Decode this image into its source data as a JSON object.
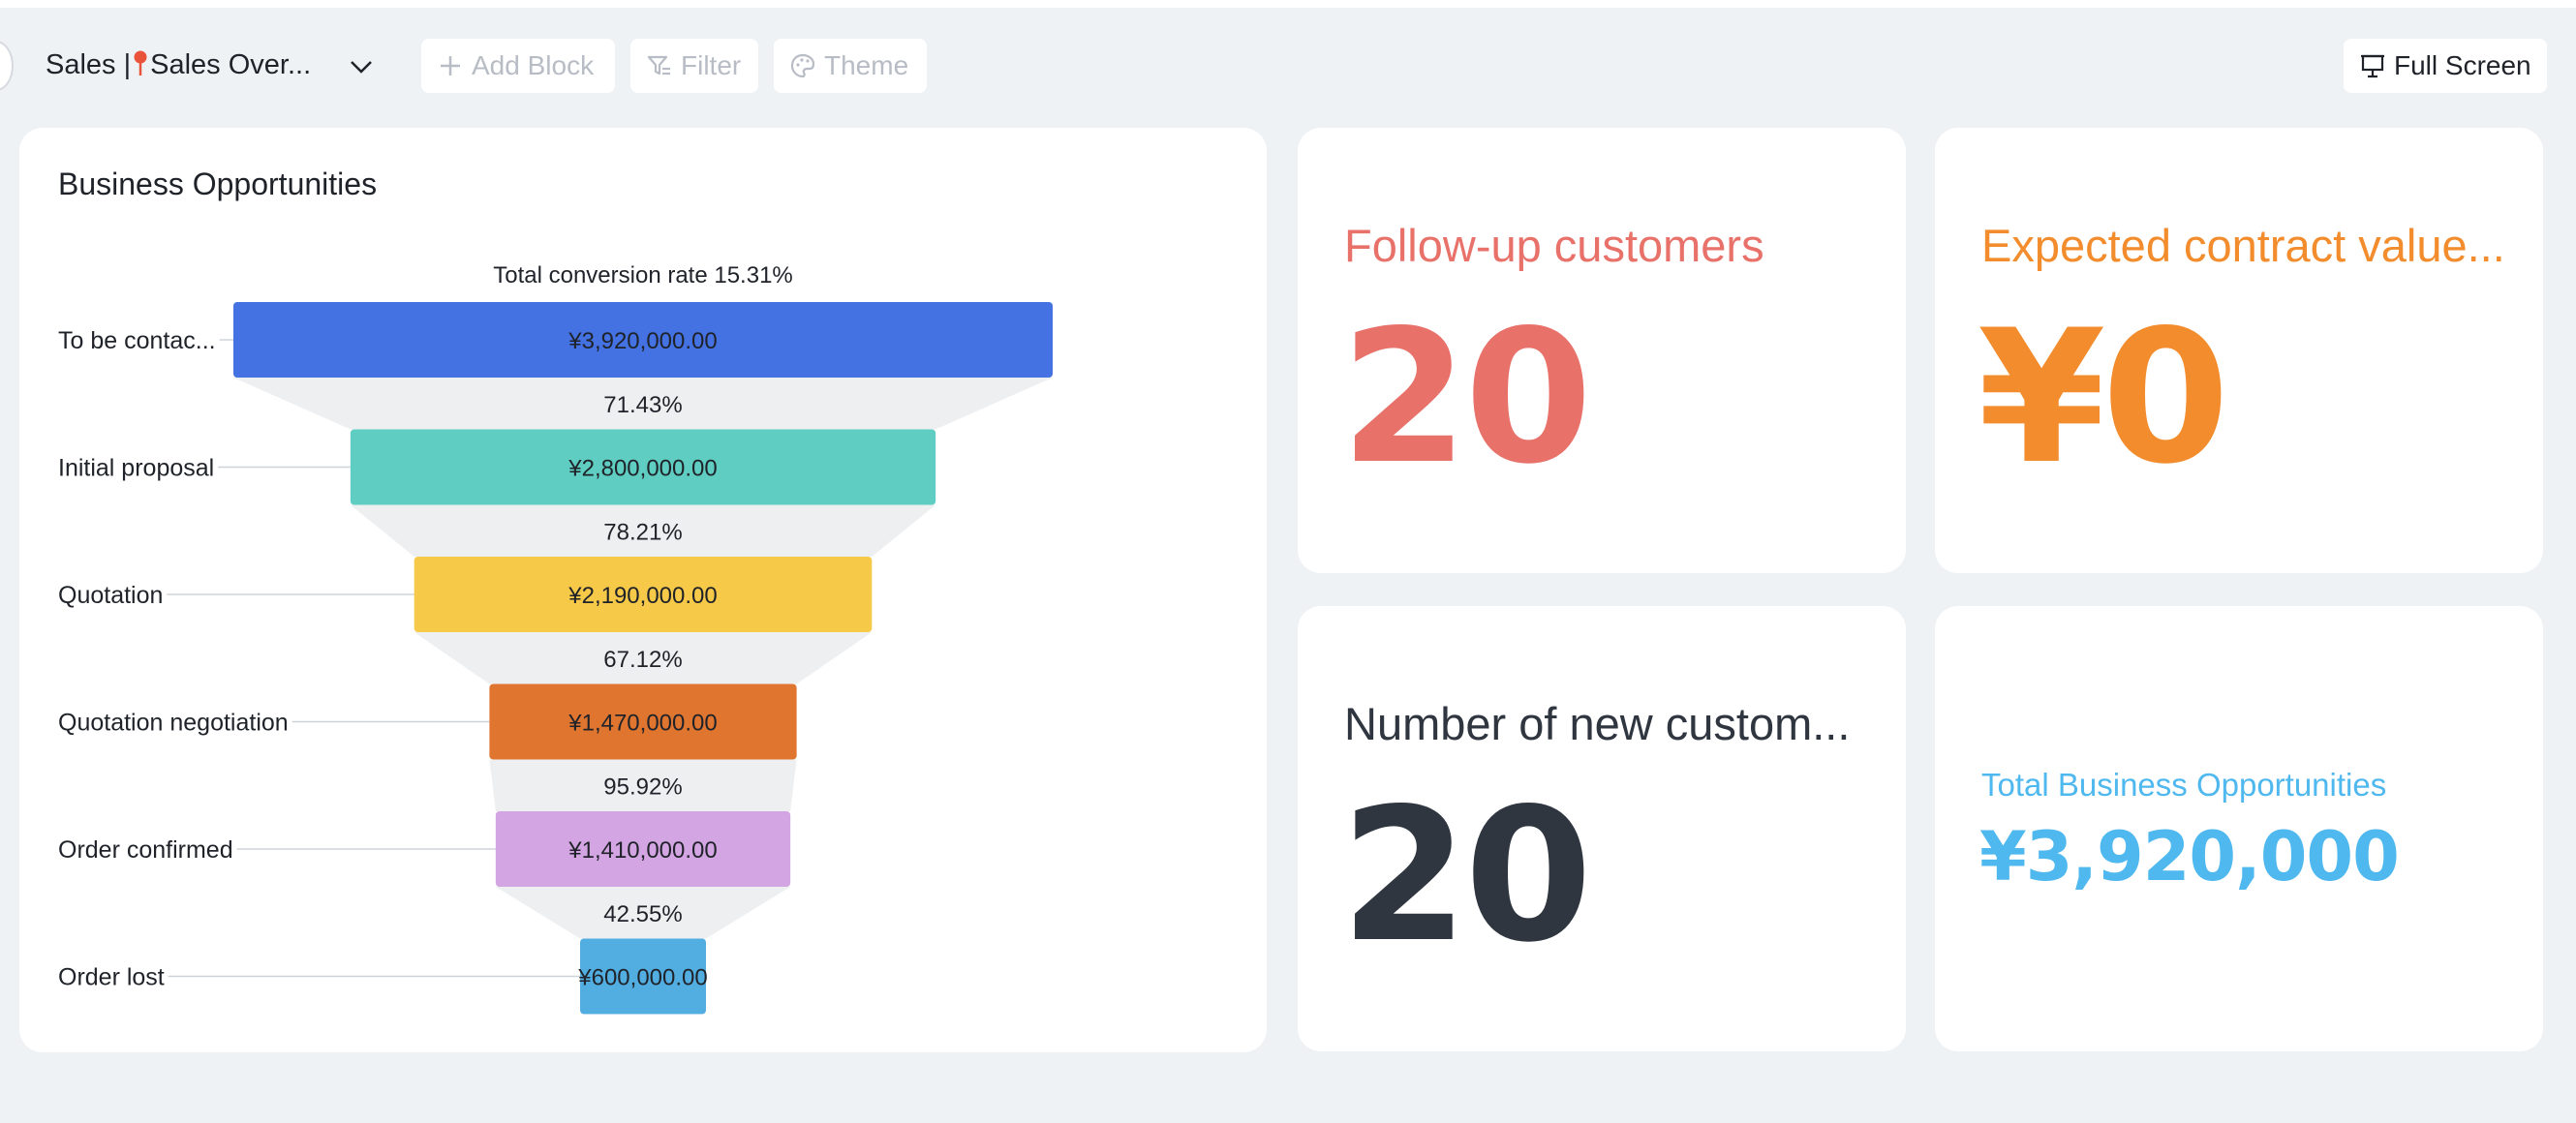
{
  "toolbar": {
    "title_prefix": "Sales |",
    "title_suffix": "Sales Over...",
    "add_block": "Add Block",
    "filter": "Filter",
    "theme": "Theme",
    "full_screen": "Full Screen",
    "icons": [
      "pin-icon",
      "chevron-down-icon",
      "plus-icon",
      "filter-icon",
      "palette-icon",
      "presentation-icon"
    ]
  },
  "funnel": {
    "title": "Business Opportunities"
  },
  "chart_data": {
    "type": "funnel",
    "title": "Business Opportunities",
    "total_label": "Total conversion rate 15.31%",
    "categories": [
      "To be contac...",
      "Initial proposal",
      "Quotation",
      "Quotation negotiation",
      "Order confirmed",
      "Order lost"
    ],
    "values": [
      3920000,
      2800000,
      2190000,
      1470000,
      1410000,
      600000
    ],
    "value_labels": [
      "¥3,920,000.00",
      "¥2,800,000.00",
      "¥2,190,000.00",
      "¥1,470,000.00",
      "¥1,410,000.00",
      "¥600,000.00"
    ],
    "conversion_labels": [
      "71.43%",
      "78.21%",
      "67.12%",
      "95.92%",
      "42.55%"
    ],
    "colors": [
      "#4472e3",
      "#5fcdc1",
      "#f7c948",
      "#e07530",
      "#d4a5e3",
      "#52ade0"
    ]
  },
  "stats": {
    "followup": {
      "label": "Follow-up customers",
      "value": "20",
      "color": "#e8716a"
    },
    "contract": {
      "label": "Expected contract value...",
      "value": "¥0",
      "color": "#f28c2c"
    },
    "newcust": {
      "label": "Number of new custom...",
      "value": "20",
      "color": "#2f3640"
    },
    "total": {
      "label": "Total Business Opportunities",
      "value": "¥3,920,000",
      "color": "#4fb8ee"
    }
  }
}
